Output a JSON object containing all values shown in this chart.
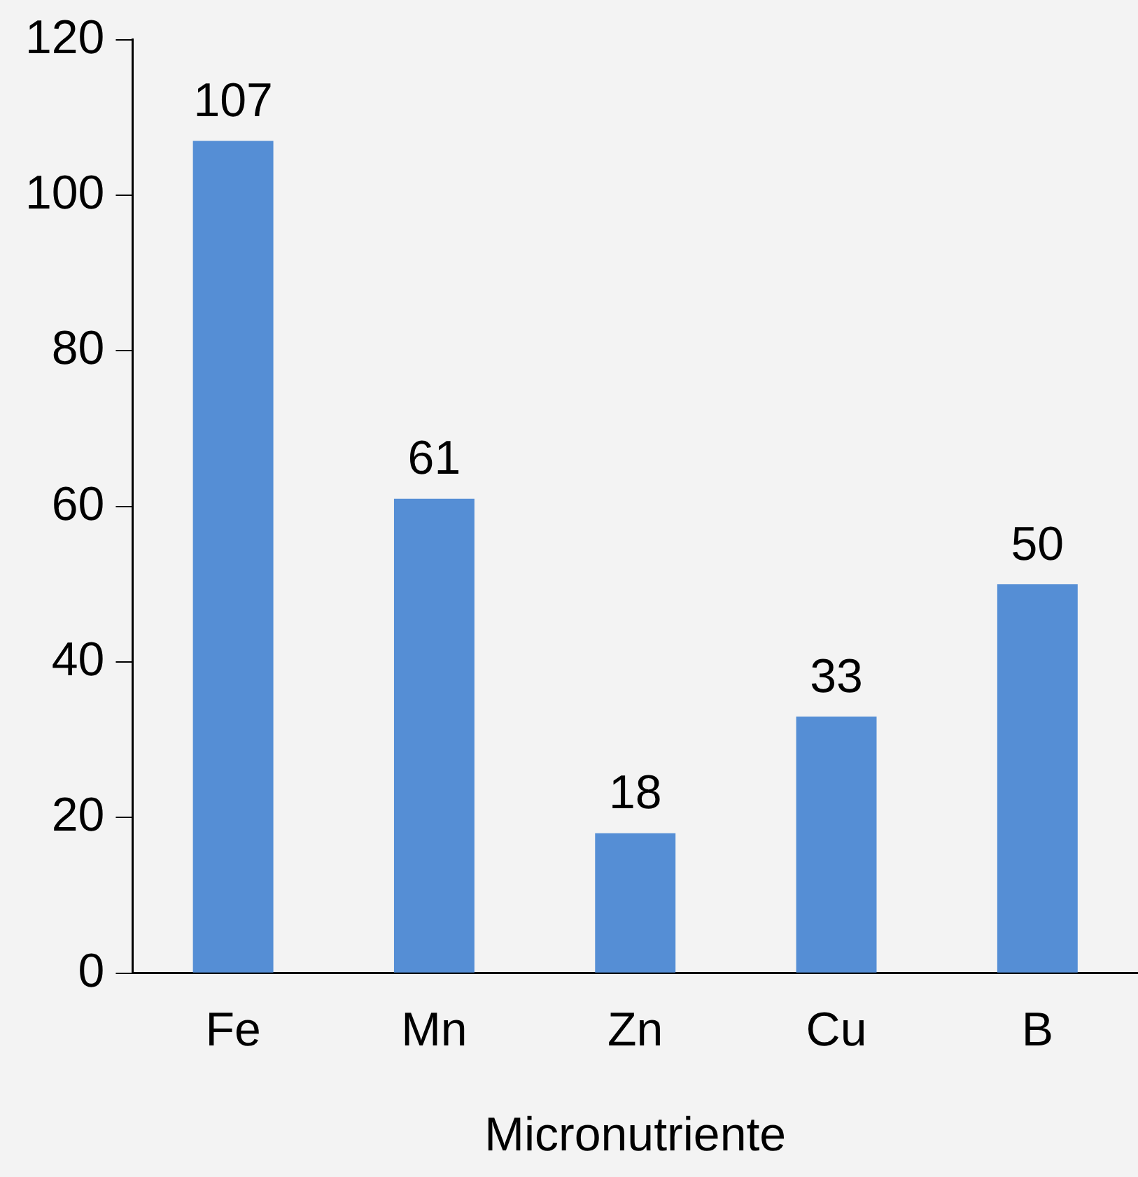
{
  "chart_data": {
    "type": "bar",
    "xlabel": "Micronutriente",
    "categories": [
      "Fe",
      "Mn",
      "Zn",
      "Cu",
      "B"
    ],
    "values": [
      107,
      61,
      18,
      33,
      50
    ],
    "color": "#558ed5",
    "ylim": [
      0,
      120
    ],
    "yticks": [
      0,
      20,
      40,
      60,
      80,
      100,
      120
    ],
    "grid": false,
    "legend": false,
    "data_labels": true
  }
}
